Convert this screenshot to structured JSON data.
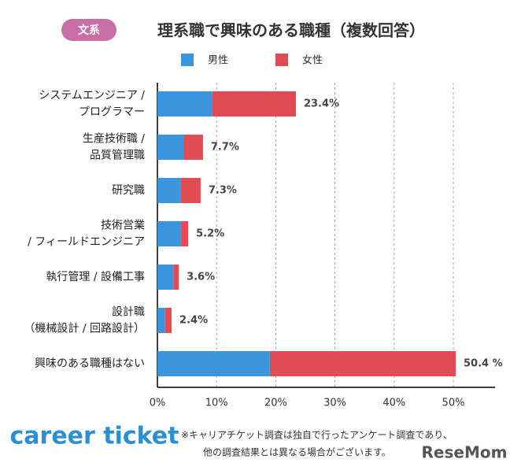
{
  "chart_data": {
    "type": "stacked-bar-horizontal",
    "badge": "文系",
    "title": "理系職で興味のある職種（複数回答）",
    "categories": [
      [
        "システムエンジニア /",
        "プログラマー"
      ],
      [
        "生産技術職 /",
        "品質管理職"
      ],
      [
        "研究職"
      ],
      [
        "技術営業",
        "/ フィールドエンジニア"
      ],
      [
        "執行管理 / 設備工事"
      ],
      [
        "設計職",
        "（機械設計 / 回路設計）"
      ],
      [
        "興味のある職種はない"
      ]
    ],
    "series": [
      {
        "name": "男性",
        "color": "#3a95dc",
        "values": [
          9.3,
          4.4,
          3.9,
          4.0,
          2.7,
          1.3,
          19.0
        ]
      },
      {
        "name": "女性",
        "color": "#e04b55",
        "values": [
          14.1,
          3.3,
          3.4,
          1.2,
          0.9,
          1.1,
          31.4
        ]
      }
    ],
    "totals": [
      23.4,
      7.7,
      7.3,
      5.2,
      3.6,
      2.4,
      50.4
    ],
    "total_labels": [
      "23.4%",
      "7.7%",
      "7.3%",
      "5.2%",
      "3.6%",
      "2.4%",
      "50.4 %"
    ],
    "xlim": [
      0,
      56
    ],
    "xticks": [
      {
        "value": 0,
        "label": "0%"
      },
      {
        "value": 10,
        "label": "10%"
      },
      {
        "value": 20,
        "label": "20%"
      },
      {
        "value": 30,
        "label": "30%"
      },
      {
        "value": 40,
        "label": "40%"
      },
      {
        "value": 50,
        "label": "50%"
      }
    ],
    "grid": true,
    "logo": "career ticket",
    "footnote": [
      "※キャリアチケット調査は独自で行ったアンケート調査であり、",
      "他の調査結果とは異なる場合がございます。"
    ],
    "watermark": "ReseMom"
  }
}
